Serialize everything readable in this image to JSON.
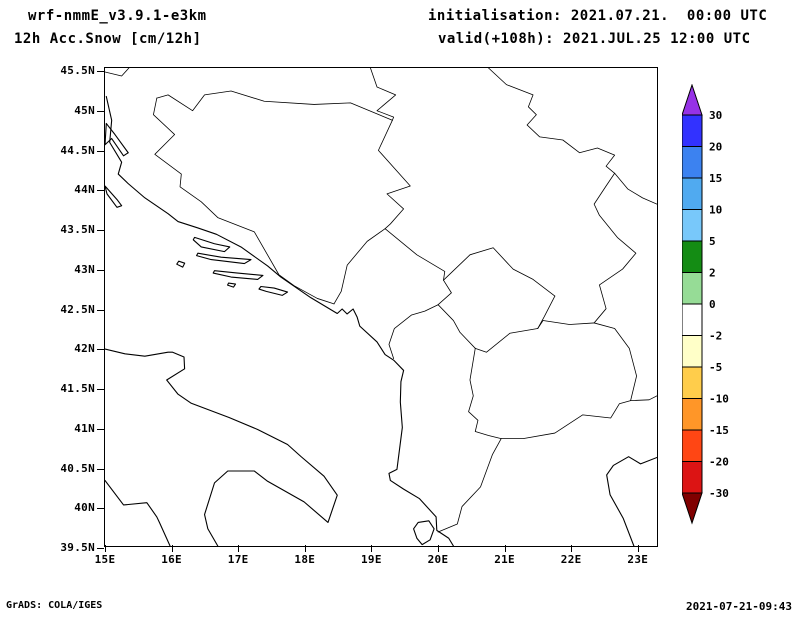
{
  "header": {
    "model_title": "wrf-nmmE_v3.9.1-e3km",
    "field_title": "12h Acc.Snow [cm/12h]",
    "init_text": "initialisation: 2021.07.21.  00:00 UTC",
    "valid_text": "valid(+108h): 2021.JUL.25 12:00 UTC"
  },
  "map": {
    "lat_ticks": [
      "45.5N",
      "45N",
      "44.5N",
      "44N",
      "43.5N",
      "43N",
      "42.5N",
      "42N",
      "41.5N",
      "41N",
      "40.5N",
      "40N",
      "39.5N"
    ],
    "lon_ticks": [
      "15E",
      "16E",
      "17E",
      "18E",
      "19E",
      "20E",
      "21E",
      "22E",
      "23E"
    ]
  },
  "colorbar": {
    "labels": [
      "30",
      "20",
      "15",
      "10",
      "5",
      "2",
      "0",
      "-2",
      "-5",
      "-10",
      "-15",
      "-20",
      "-30"
    ],
    "top_arrow_color": "#9632e6",
    "bottom_arrow_color": "#800000",
    "segment_colors": [
      "#3232ff",
      "#3c82f0",
      "#50aaf0",
      "#78c8fa",
      "#148c14",
      "#96dc96",
      "#ffffff",
      "#ffffc8",
      "#ffcd4b",
      "#ff9628",
      "#ff4614",
      "#dc1414"
    ]
  },
  "footer": {
    "grads_credit": "GrADS: COLA/IGES",
    "timestamp": "2021-07-21-09:43"
  }
}
